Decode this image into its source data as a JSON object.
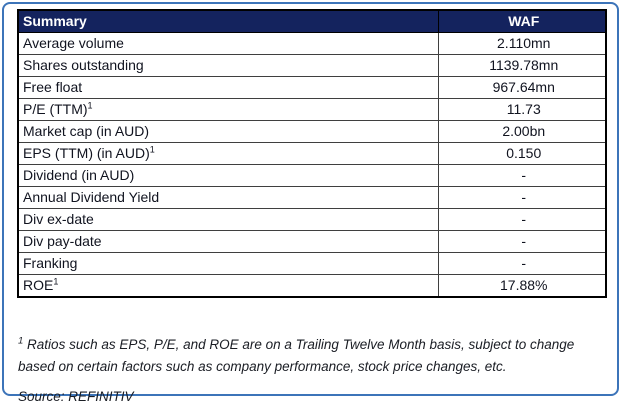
{
  "table": {
    "header": {
      "label": "Summary",
      "value": "WAF"
    },
    "rows": [
      {
        "label": "Average volume",
        "sup": "",
        "value": "2.110mn"
      },
      {
        "label": "Shares outstanding",
        "sup": "",
        "value": "1139.78mn"
      },
      {
        "label": "Free float",
        "sup": "",
        "value": "967.64mn"
      },
      {
        "label": "P/E (TTM)",
        "sup": "1",
        "value": "11.73"
      },
      {
        "label": "Market cap (in AUD)",
        "sup": "",
        "value": "2.00bn"
      },
      {
        "label": "EPS (TTM) (in AUD)",
        "sup": "1",
        "value": "0.150"
      },
      {
        "label": "Dividend (in AUD)",
        "sup": "",
        "value": "-"
      },
      {
        "label": "Annual Dividend Yield",
        "sup": "",
        "value": "-"
      },
      {
        "label": "Div ex-date",
        "sup": "",
        "value": "-"
      },
      {
        "label": "Div pay-date",
        "sup": "",
        "value": "-"
      },
      {
        "label": "Franking",
        "sup": "",
        "value": "-"
      },
      {
        "label": "ROE",
        "sup": "1",
        "value": "17.88%"
      }
    ]
  },
  "footnote": {
    "sup": "1",
    "text": " Ratios such as EPS, P/E, and ROE are on a Trailing Twelve Month basis, subject to change based on certain factors such as company performance, stock price changes, etc."
  },
  "source": "Source: REFINITIV",
  "colors": {
    "header_bg": "#14235e",
    "header_text": "#ffffff",
    "outer_border": "#3c74b9",
    "table_border": "#000000",
    "grid_line": "#3f3f3f"
  }
}
